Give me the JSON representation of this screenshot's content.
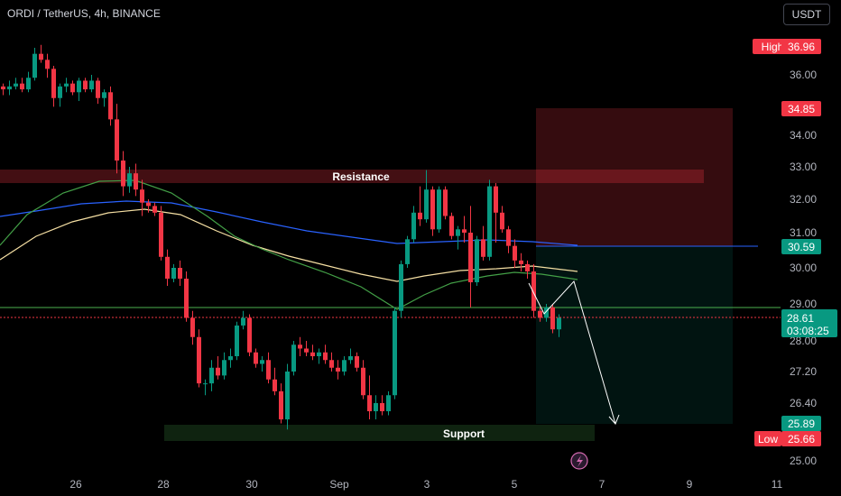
{
  "header": {
    "title": "ORDI / TetherUS, 4h, BINANCE",
    "currency_button": "USDT"
  },
  "colors": {
    "up": "#089981",
    "down": "#f23645",
    "ema_fast": "#43a047",
    "ema_mid": "#f5dfa3",
    "ema_slow": "#2962ff"
  },
  "chart_data": {
    "type": "candlestick",
    "timeframe": "4h",
    "y_axis": {
      "range": [
        24.7,
        37.8
      ],
      "ticks": [
        "36.00",
        "34.00",
        "33.00",
        "32.00",
        "31.00",
        "30.00",
        "29.00",
        "28.00",
        "27.20",
        "26.40",
        "25.00"
      ]
    },
    "x_axis": {
      "ticks": [
        "26",
        "28",
        "30",
        "Sep",
        "3",
        "5",
        "7",
        "9",
        "11"
      ]
    },
    "candles": [
      [
        35.6,
        35.7,
        35.3,
        35.5
      ],
      [
        35.5,
        35.8,
        35.3,
        35.6
      ],
      [
        35.6,
        35.9,
        35.5,
        35.7
      ],
      [
        35.7,
        35.9,
        35.4,
        35.5
      ],
      [
        35.5,
        36.1,
        35.4,
        35.9
      ],
      [
        35.9,
        36.9,
        35.8,
        36.7
      ],
      [
        36.7,
        37.0,
        36.4,
        36.5
      ],
      [
        36.5,
        36.7,
        35.9,
        36.2
      ],
      [
        36.2,
        36.3,
        34.9,
        35.2
      ],
      [
        35.2,
        35.7,
        34.9,
        35.6
      ],
      [
        35.6,
        35.9,
        35.4,
        35.7
      ],
      [
        35.7,
        35.8,
        35.3,
        35.4
      ],
      [
        35.4,
        35.9,
        35.1,
        35.8
      ],
      [
        35.8,
        35.9,
        35.4,
        35.5
      ],
      [
        35.5,
        36.0,
        35.4,
        35.8
      ],
      [
        35.8,
        35.9,
        35.0,
        35.2
      ],
      [
        35.2,
        35.5,
        34.9,
        35.4
      ],
      [
        35.4,
        35.6,
        34.3,
        34.5
      ],
      [
        34.5,
        35.0,
        32.8,
        33.2
      ],
      [
        33.2,
        33.5,
        32.1,
        32.4
      ],
      [
        32.4,
        33.0,
        32.2,
        32.8
      ],
      [
        32.8,
        33.1,
        32.1,
        32.3
      ],
      [
        32.3,
        32.6,
        31.5,
        31.9
      ],
      [
        31.9,
        32.0,
        31.6,
        31.8
      ],
      [
        31.8,
        31.9,
        31.5,
        31.6
      ],
      [
        31.6,
        31.8,
        30.2,
        30.3
      ],
      [
        30.3,
        30.5,
        29.5,
        29.7
      ],
      [
        29.7,
        30.1,
        29.6,
        30.0
      ],
      [
        30.0,
        30.2,
        29.5,
        29.7
      ],
      [
        29.7,
        29.9,
        28.5,
        28.6
      ],
      [
        28.6,
        28.8,
        27.9,
        28.1
      ],
      [
        28.1,
        28.3,
        26.8,
        26.9
      ],
      [
        26.9,
        27.0,
        26.6,
        26.9
      ],
      [
        26.9,
        27.5,
        26.7,
        27.3
      ],
      [
        27.3,
        27.6,
        27.0,
        27.1
      ],
      [
        27.1,
        27.7,
        27.0,
        27.5
      ],
      [
        27.5,
        27.8,
        27.3,
        27.6
      ],
      [
        27.6,
        28.5,
        27.5,
        28.4
      ],
      [
        28.4,
        28.8,
        28.3,
        28.6
      ],
      [
        28.6,
        28.7,
        27.6,
        27.7
      ],
      [
        27.7,
        27.8,
        27.3,
        27.4
      ],
      [
        27.4,
        27.6,
        27.2,
        27.5
      ],
      [
        27.5,
        27.7,
        26.9,
        27.0
      ],
      [
        27.0,
        27.3,
        26.6,
        26.7
      ],
      [
        26.7,
        26.9,
        25.9,
        26.0
      ],
      [
        26.0,
        27.4,
        25.8,
        27.2
      ],
      [
        27.2,
        28.0,
        27.1,
        27.9
      ],
      [
        27.9,
        28.1,
        27.6,
        27.8
      ],
      [
        27.8,
        28.0,
        27.6,
        27.7
      ],
      [
        27.7,
        27.9,
        27.5,
        27.6
      ],
      [
        27.6,
        27.8,
        27.4,
        27.7
      ],
      [
        27.7,
        27.9,
        27.4,
        27.5
      ],
      [
        27.5,
        27.7,
        27.2,
        27.3
      ],
      [
        27.3,
        27.5,
        27.0,
        27.2
      ],
      [
        27.2,
        27.6,
        27.1,
        27.5
      ],
      [
        27.5,
        27.8,
        27.4,
        27.6
      ],
      [
        27.6,
        27.7,
        27.2,
        27.3
      ],
      [
        27.3,
        27.5,
        26.5,
        26.6
      ],
      [
        26.6,
        27.1,
        26.0,
        26.2
      ],
      [
        26.2,
        26.6,
        26.0,
        26.4
      ],
      [
        26.4,
        26.6,
        26.1,
        26.2
      ],
      [
        26.2,
        26.7,
        26.1,
        26.6
      ],
      [
        26.6,
        28.9,
        26.5,
        28.8
      ],
      [
        28.8,
        30.2,
        28.6,
        30.1
      ],
      [
        30.1,
        30.9,
        30.0,
        30.8
      ],
      [
        30.8,
        31.8,
        30.7,
        31.6
      ],
      [
        31.6,
        32.4,
        31.2,
        31.4
      ],
      [
        31.4,
        32.9,
        31.3,
        32.3
      ],
      [
        32.3,
        32.4,
        30.9,
        31.1
      ],
      [
        31.1,
        32.4,
        31.0,
        32.3
      ],
      [
        32.3,
        32.4,
        31.4,
        31.5
      ],
      [
        31.5,
        31.6,
        30.8,
        30.9
      ],
      [
        30.9,
        31.2,
        30.5,
        31.1
      ],
      [
        31.1,
        31.5,
        30.7,
        31.0
      ],
      [
        31.0,
        31.8,
        28.9,
        29.6
      ],
      [
        29.6,
        30.9,
        29.5,
        30.8
      ],
      [
        30.8,
        31.2,
        30.2,
        30.3
      ],
      [
        30.3,
        32.6,
        30.2,
        32.4
      ],
      [
        32.4,
        32.5,
        30.7,
        31.6
      ],
      [
        31.6,
        31.8,
        31.0,
        31.1
      ],
      [
        31.1,
        31.2,
        30.4,
        30.6
      ],
      [
        30.6,
        30.8,
        30.0,
        30.2
      ],
      [
        30.2,
        30.4,
        29.9,
        30.1
      ],
      [
        30.1,
        30.2,
        29.7,
        29.9
      ],
      [
        29.9,
        30.1,
        28.6,
        28.8
      ],
      [
        28.8,
        28.9,
        28.5,
        28.6
      ],
      [
        28.6,
        29.0,
        28.5,
        28.9
      ],
      [
        28.9,
        29.0,
        28.2,
        28.3
      ],
      [
        28.3,
        28.7,
        28.1,
        28.6
      ]
    ],
    "levels": [
      {
        "name": "Resistance",
        "from": 32.6,
        "to": 32.8
      },
      {
        "name": "Support",
        "from": 25.53,
        "to": 25.78
      }
    ],
    "price_labels": {
      "high": {
        "label": "High",
        "value": "36.96"
      },
      "low": {
        "label": "Low",
        "value": "25.66"
      },
      "target": "34.85",
      "entry": "30.59",
      "stop": "25.89",
      "current": {
        "value": "28.61",
        "countdown": "03:08:25"
      }
    }
  }
}
